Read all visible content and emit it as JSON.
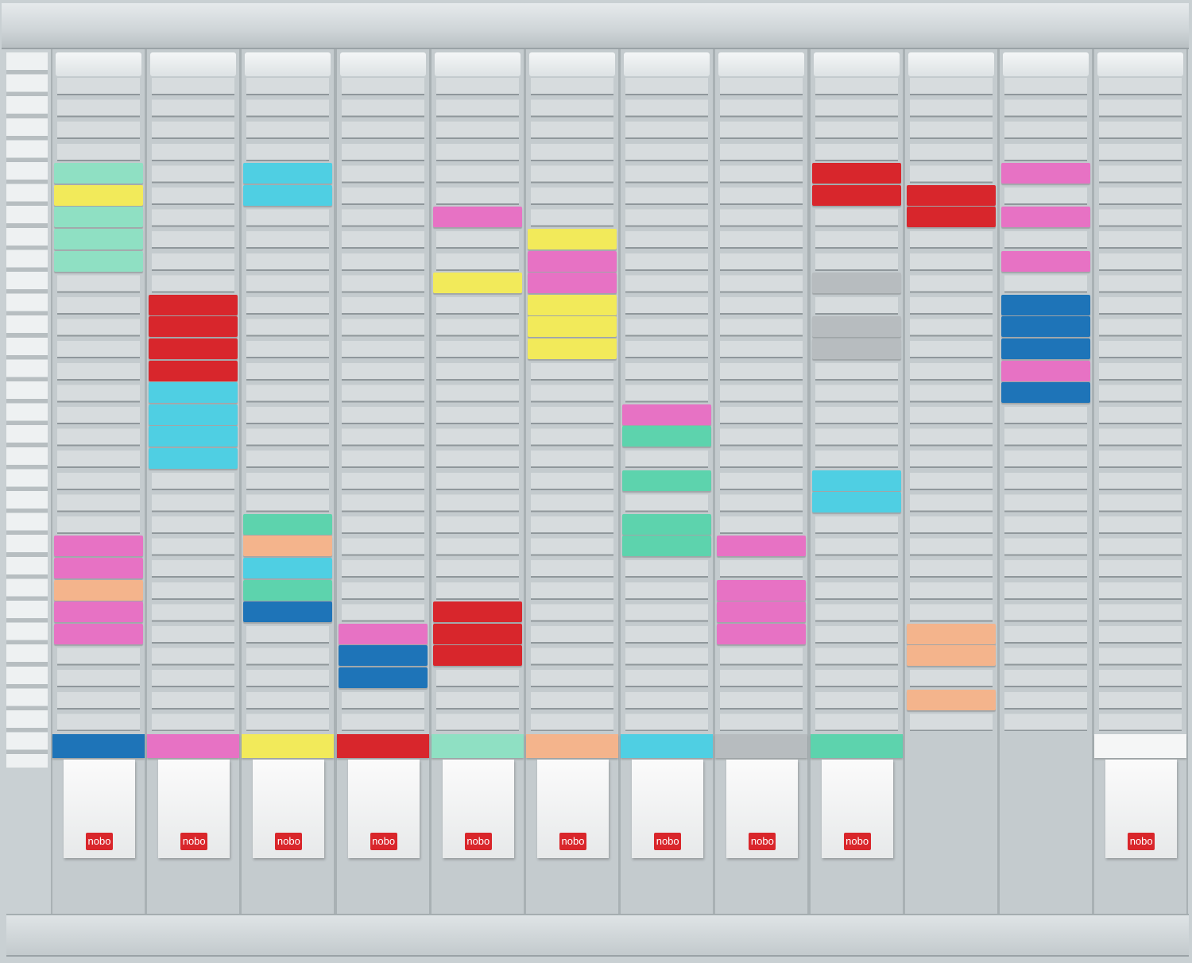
{
  "colors": {
    "teal": "#5dd3ad",
    "mint": "#8fe0c3",
    "yellow": "#f2ea5a",
    "cyan": "#4fcfe3",
    "pink": "#e772c4",
    "peach": "#f4b48c",
    "red": "#d8262c",
    "blue": "#1e74b8",
    "gray": "#b7bcbf"
  },
  "logo_text": "nobo",
  "columns": [
    {
      "cards": [
        [
          2,
          "mint"
        ],
        [
          3,
          "yellow"
        ],
        [
          4,
          "mint"
        ],
        [
          5,
          "mint"
        ],
        [
          6,
          "mint"
        ],
        [
          19,
          "pink"
        ],
        [
          20,
          "pink"
        ],
        [
          21,
          "peach"
        ],
        [
          22,
          "pink"
        ],
        [
          23,
          "pink"
        ]
      ],
      "strip": "blue",
      "box": true
    },
    {
      "cards": [
        [
          8,
          "red"
        ],
        [
          9,
          "red"
        ],
        [
          10,
          "red"
        ],
        [
          11,
          "red"
        ],
        [
          12,
          "cyan"
        ],
        [
          13,
          "cyan"
        ],
        [
          14,
          "cyan"
        ],
        [
          15,
          "cyan"
        ]
      ],
      "strip": "pink",
      "box": true
    },
    {
      "cards": [
        [
          2,
          "cyan"
        ],
        [
          3,
          "cyan"
        ],
        [
          18,
          "teal"
        ],
        [
          19,
          "peach"
        ],
        [
          20,
          "cyan"
        ],
        [
          21,
          "teal"
        ],
        [
          22,
          "blue"
        ]
      ],
      "strip": "yellow",
      "box": true
    },
    {
      "cards": [
        [
          23,
          "pink"
        ],
        [
          24,
          "blue"
        ],
        [
          25,
          "blue"
        ]
      ],
      "strip": "red",
      "box": true
    },
    {
      "cards": [
        [
          4,
          "pink"
        ],
        [
          7,
          "yellow"
        ],
        [
          22,
          "red"
        ],
        [
          23,
          "red"
        ],
        [
          24,
          "red"
        ]
      ],
      "strip": "mint",
      "box": true
    },
    {
      "cards": [
        [
          5,
          "yellow"
        ],
        [
          6,
          "pink"
        ],
        [
          7,
          "pink"
        ],
        [
          8,
          "yellow"
        ],
        [
          9,
          "yellow"
        ],
        [
          10,
          "yellow"
        ]
      ],
      "strip": "peach",
      "box": true
    },
    {
      "cards": [
        [
          13,
          "pink"
        ],
        [
          14,
          "teal"
        ],
        [
          16,
          "teal"
        ],
        [
          18,
          "teal"
        ],
        [
          19,
          "teal"
        ]
      ],
      "strip": "cyan",
      "box": true
    },
    {
      "cards": [
        [
          19,
          "pink"
        ],
        [
          21,
          "pink"
        ],
        [
          22,
          "pink"
        ],
        [
          23,
          "pink"
        ]
      ],
      "strip": "gray",
      "box": true
    },
    {
      "cards": [
        [
          2,
          "red"
        ],
        [
          3,
          "red"
        ],
        [
          7,
          "gray"
        ],
        [
          9,
          "gray"
        ],
        [
          10,
          "gray"
        ],
        [
          16,
          "cyan"
        ],
        [
          17,
          "cyan"
        ]
      ],
      "strip": "teal",
      "box": true
    },
    {
      "cards": [
        [
          3,
          "red"
        ],
        [
          4,
          "red"
        ],
        [
          23,
          "peach"
        ],
        [
          24,
          "peach"
        ],
        [
          26,
          "peach"
        ]
      ],
      "strip": null,
      "box": false
    },
    {
      "cards": [
        [
          2,
          "pink"
        ],
        [
          4,
          "pink"
        ],
        [
          6,
          "pink"
        ],
        [
          8,
          "blue"
        ],
        [
          9,
          "blue"
        ],
        [
          10,
          "blue"
        ],
        [
          11,
          "pink"
        ],
        [
          12,
          "blue"
        ]
      ],
      "strip": null,
      "box": false
    },
    {
      "cards": [],
      "strip": "white",
      "box": true
    }
  ]
}
